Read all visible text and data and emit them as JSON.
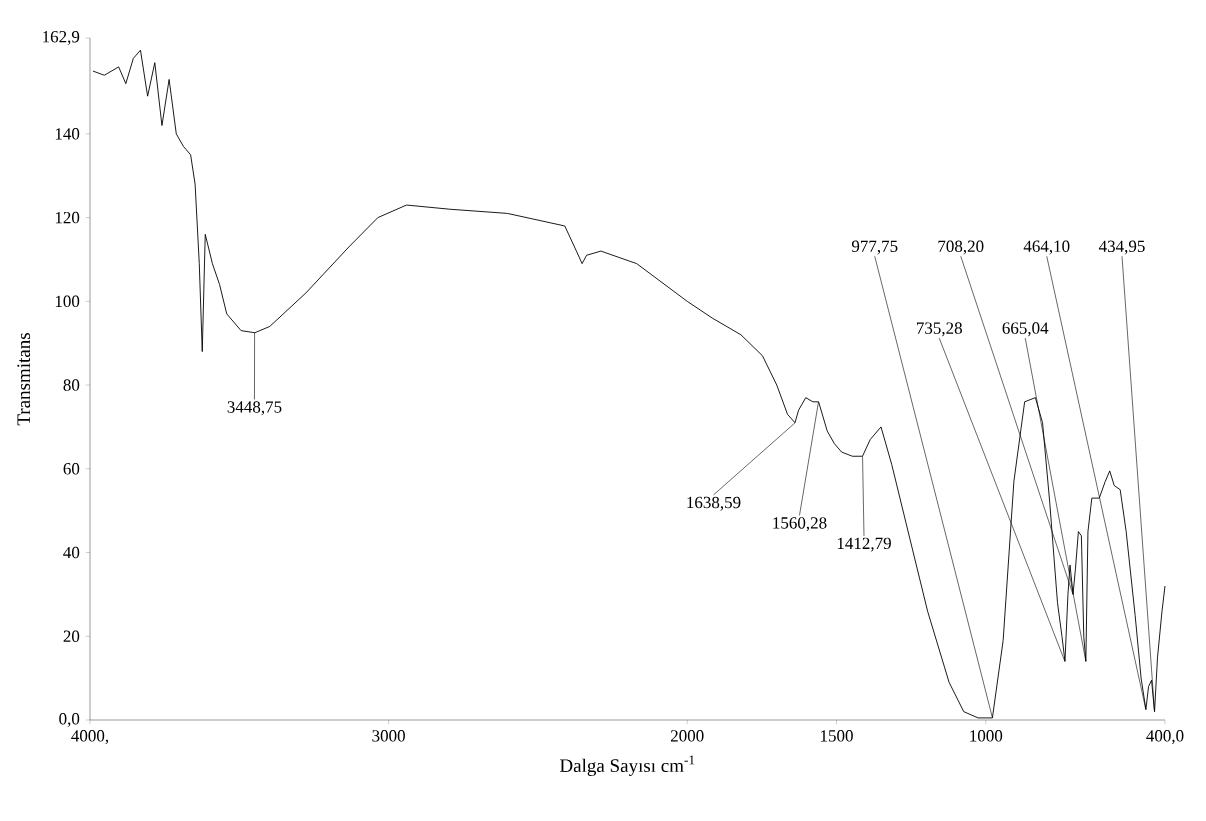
{
  "chart_data": {
    "type": "line",
    "xlabel": "Dalga Sayısı cm$^{-1}$",
    "ylabel": "Transmitans",
    "color": "#000000",
    "x": [
      3990,
      3952,
      3904,
      3880,
      3855,
      3831,
      3807,
      3783,
      3759,
      3735,
      3711,
      3687,
      3663,
      3648,
      3634,
      3624,
      3614,
      3590,
      3566,
      3542,
      3494,
      3448,
      3398,
      3277,
      3133,
      3036,
      2940,
      2795,
      2602,
      2410,
      2371,
      2352,
      2337,
      2289,
      2169,
      2000,
      1916,
      1820,
      1748,
      1700,
      1664,
      1639,
      1627,
      1603,
      1579,
      1560,
      1531,
      1507,
      1483,
      1447,
      1413,
      1387,
      1351,
      1315,
      1267,
      1195,
      1123,
      1074,
      1026,
      978,
      942,
      906,
      870,
      834,
      810,
      786,
      760,
      745,
      735,
      725,
      718,
      708,
      700,
      690,
      680,
      672,
      665,
      658,
      645,
      620,
      600,
      585,
      570,
      550,
      530,
      500,
      480,
      464,
      455,
      445,
      435,
      425,
      410,
      400
    ],
    "values": [
      155,
      154,
      156,
      152,
      158,
      160,
      149,
      157,
      142,
      153,
      140,
      137,
      135,
      128,
      109,
      88,
      116,
      109,
      104,
      97,
      93,
      92.5,
      94,
      102,
      113,
      120,
      123,
      122,
      121,
      118,
      112,
      109,
      111,
      112,
      109,
      100,
      96,
      92,
      87,
      80,
      73,
      71,
      74,
      77,
      76,
      76,
      69,
      66,
      64,
      63,
      63,
      67,
      70,
      61,
      47,
      26,
      9,
      2,
      0.5,
      0.5,
      19,
      57,
      76,
      77,
      71,
      52,
      28,
      20,
      14,
      30,
      37,
      30,
      36,
      45,
      44,
      20,
      14,
      45,
      53,
      53,
      57,
      59.5,
      56,
      55,
      45,
      25,
      10,
      2.5,
      8,
      9.5,
      2,
      15,
      26,
      32
    ],
    "xlim": [
      4000,
      400
    ],
    "xticks": [
      {
        "value": 4000,
        "label": "4000,"
      },
      3000,
      2000,
      1500,
      1000,
      {
        "value": 400,
        "label": "400,0"
      }
    ],
    "ylim": [
      0,
      162.9
    ],
    "yticks": [
      {
        "value": 0,
        "label": "0,0"
      },
      20,
      40,
      60,
      80,
      100,
      120,
      140,
      {
        "value": 162.9,
        "label": "162,9"
      }
    ],
    "annotations": [
      {
        "text": "3448,75",
        "x": 3448.75,
        "y": 92.5
      },
      {
        "text": "1638,59",
        "x": 1638.59,
        "y": 71
      },
      {
        "text": "1560,28",
        "x": 1560.28,
        "y": 76
      },
      {
        "text": "1412,79",
        "x": 1412.79,
        "y": 63
      },
      {
        "text": "977,75",
        "x": 977.75,
        "y": 0.5
      },
      {
        "text": "708,20",
        "x": 708.2,
        "y": 30
      },
      {
        "text": "735,28",
        "x": 735.28,
        "y": 14
      },
      {
        "text": "665,04",
        "x": 665.04,
        "y": 14
      },
      {
        "text": "464,10",
        "x": 464.1,
        "y": 2.5
      },
      {
        "text": "434,95",
        "x": 434.95,
        "y": 2
      }
    ]
  }
}
